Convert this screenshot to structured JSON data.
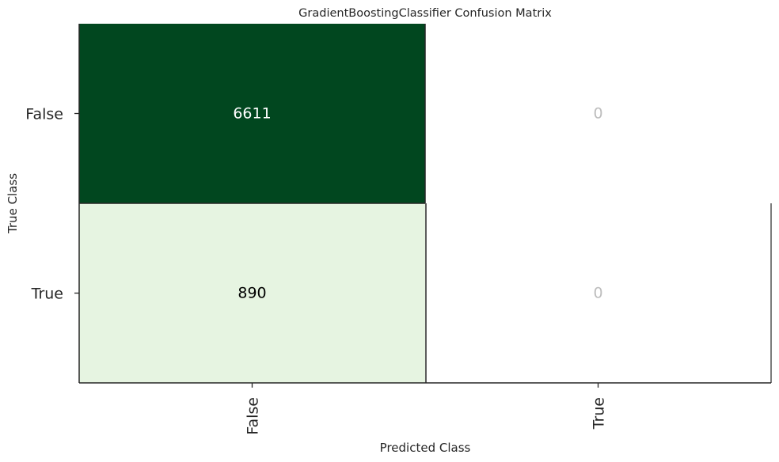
{
  "chart_data": {
    "type": "heatmap",
    "title": "GradientBoostingClassifier Confusion Matrix",
    "xlabel": "Predicted Class",
    "ylabel": "True Class",
    "x_categories": [
      "False",
      "True"
    ],
    "y_categories": [
      "False",
      "True"
    ],
    "values": [
      [
        6611,
        0
      ],
      [
        890,
        0
      ]
    ],
    "cell_colors": [
      [
        "#01471f",
        "#ffffff"
      ],
      [
        "#e6f4e1",
        "#ffffff"
      ]
    ],
    "cell_text_colors": [
      [
        "#ffffff",
        "#bdbdbd"
      ],
      [
        "#000000",
        "#bdbdbd"
      ]
    ],
    "grid": false
  }
}
